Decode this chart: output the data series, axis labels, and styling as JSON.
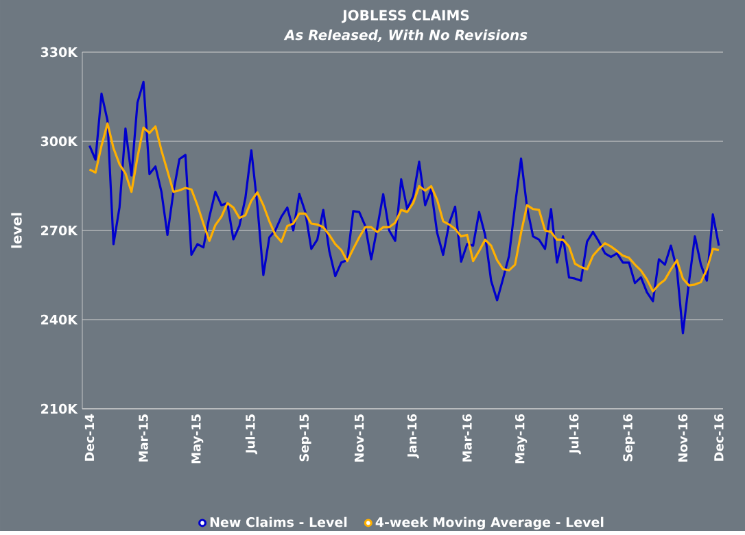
{
  "chart_data": {
    "type": "line",
    "title": "JOBLESS CLAIMS",
    "subtitle": "As Released, With No Revisions",
    "ylabel": "level",
    "categories": [
      "Dec-14",
      null,
      null,
      null,
      null,
      null,
      null,
      null,
      null,
      "Mar-15",
      null,
      null,
      null,
      null,
      null,
      null,
      null,
      null,
      "May-15",
      null,
      null,
      null,
      null,
      null,
      null,
      null,
      null,
      "Jul-15",
      null,
      null,
      null,
      null,
      null,
      null,
      null,
      null,
      "Sep-15",
      null,
      null,
      null,
      null,
      null,
      null,
      null,
      null,
      "Nov-15",
      null,
      null,
      null,
      null,
      null,
      null,
      null,
      null,
      "Jan-16",
      null,
      null,
      null,
      null,
      null,
      null,
      null,
      null,
      "Mar-16",
      null,
      null,
      null,
      null,
      null,
      null,
      null,
      null,
      "May-16",
      null,
      null,
      null,
      null,
      null,
      null,
      null,
      null,
      "Jul-16",
      null,
      null,
      null,
      null,
      null,
      null,
      null,
      null,
      "Sep-16",
      null,
      null,
      null,
      null,
      null,
      null,
      null,
      null,
      "Nov-16",
      null,
      null,
      null,
      null,
      null,
      "Dec-16"
    ],
    "series": [
      {
        "name": "New Claims - Level",
        "color": "#0000cc",
        "values": [
          298.5,
          293.8,
          316,
          307,
          265.4,
          277.7,
          304.3,
          288.5,
          313,
          320,
          289,
          291.5,
          283,
          268.5,
          283,
          294,
          295.4,
          261.8,
          265.4,
          264.3,
          274.6,
          283,
          278.5,
          279.2,
          267,
          271.5,
          280.8,
          297,
          278.5,
          255,
          267.7,
          270,
          274.6,
          277.7,
          270,
          282.3,
          276.2,
          263.8,
          266.9,
          276.9,
          263.1,
          254.6,
          259.2,
          260,
          276.5,
          276.2,
          271.5,
          260.3,
          270.8,
          282.2,
          270,
          266.5,
          287.2,
          277.2,
          281.5,
          293.1,
          278.5,
          283.8,
          269.2,
          261.8,
          272.3,
          278,
          259.5,
          265.4,
          264.9,
          276.2,
          268.5,
          253.1,
          246.5,
          253.8,
          261.5,
          278.5,
          294.2,
          277.7,
          268,
          266.9,
          263.8,
          277.2,
          259.2,
          268,
          254.2,
          253.8,
          253.1,
          266.2,
          269.5,
          266.2,
          262.3,
          261.1,
          262.3,
          259.2,
          259.2,
          252.3,
          254.2,
          249.2,
          246.2,
          260.3,
          258.5,
          264.9,
          256.9,
          235.4,
          252.3,
          268,
          258.5,
          253.1,
          275.4,
          264.9
        ]
      },
      {
        "name": "4-week Moving Average - Level",
        "color": "#ffb000",
        "values": [
          290.5,
          289.5,
          298.5,
          306,
          297.7,
          292.3,
          289.2,
          283,
          294.6,
          304.6,
          302.8,
          305,
          296.9,
          290,
          283,
          283.5,
          284.3,
          283.8,
          278.5,
          272.3,
          266.5,
          271.8,
          274.6,
          279.2,
          277.7,
          274.2,
          275.1,
          280,
          282.8,
          278.5,
          273.1,
          268.5,
          266.2,
          271.5,
          272.3,
          275.7,
          275.7,
          272.3,
          272,
          271.1,
          268.5,
          265.4,
          263.4,
          259.7,
          263.8,
          267.7,
          271.1,
          271.1,
          269.5,
          271.1,
          271.1,
          272.6,
          276.9,
          276.2,
          279.2,
          284.9,
          283.4,
          284.9,
          280.3,
          273.1,
          272,
          270.5,
          268,
          268.5,
          259.7,
          263.1,
          266.9,
          264.9,
          260,
          257,
          256.6,
          258.5,
          269.2,
          278.5,
          277.2,
          276.9,
          270,
          269.5,
          266.9,
          266.9,
          264.6,
          258.8,
          257.7,
          256.9,
          261.5,
          263.8,
          265.7,
          264.6,
          263.1,
          261.5,
          260.8,
          258.5,
          256.5,
          253.5,
          249.5,
          251.8,
          253.4,
          256.9,
          260,
          253.8,
          251.5,
          251.8,
          252.6,
          256.9,
          263.8,
          263.4
        ]
      }
    ],
    "ylim": [
      210,
      330
    ],
    "yticks": [
      {
        "value": 210,
        "label": "210K"
      },
      {
        "value": 240,
        "label": "240K"
      },
      {
        "value": 270,
        "label": "270K"
      },
      {
        "value": 300,
        "label": "300K"
      },
      {
        "value": 330,
        "label": "330K"
      }
    ],
    "grid": "y",
    "legend": "bottom",
    "line_style": "solid"
  }
}
